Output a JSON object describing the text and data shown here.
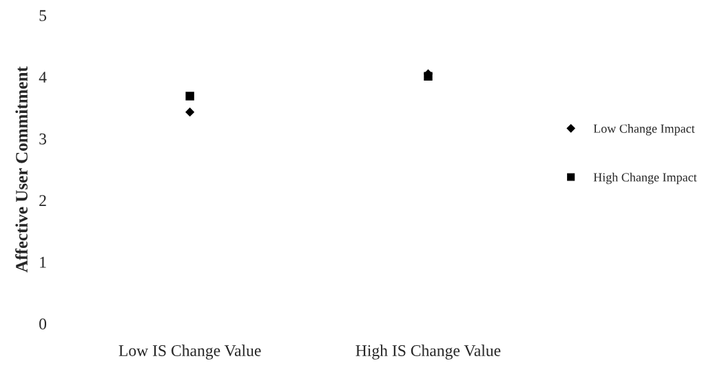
{
  "chart_data": {
    "type": "scatter",
    "ylabel": "Affective User Commitment",
    "categories": [
      "Low IS Change Value",
      "High IS Change Value"
    ],
    "series": [
      {
        "name": "Low Change Impact",
        "color": "#000000",
        "marker": "diamond",
        "values": [
          3.43,
          4.05
        ]
      },
      {
        "name": "High Change Impact",
        "color": "#000000",
        "marker": "square",
        "values": [
          3.69,
          4.01
        ]
      }
    ],
    "ylim": [
      0,
      5
    ],
    "yticks": [
      0,
      1,
      2,
      3,
      4,
      5
    ],
    "grid": false,
    "legend": "right"
  }
}
